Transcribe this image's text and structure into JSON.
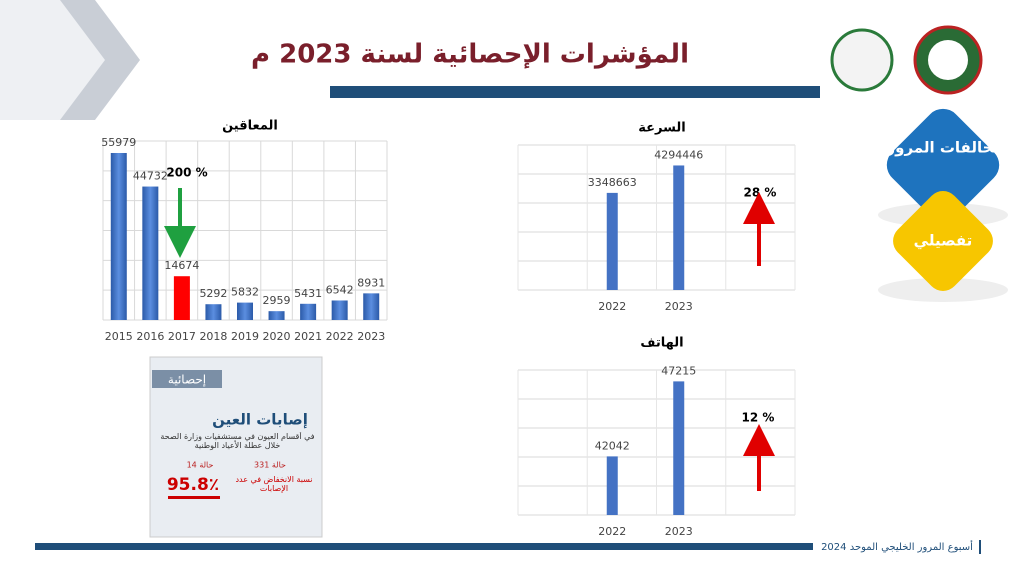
{
  "title": "المؤشرات الإحصائية لسنة 2023 م",
  "footer": "أسبوع المرور الخليجي الموحد 2024",
  "buttons": [
    "المخالفات المرورية",
    "تفصيلي"
  ],
  "infographic": {
    "tag": "إحصائية",
    "heading": "إصابات العين",
    "text": "في أقسام العيون في مستشفيات وزارة الصحة خلال عطلة الأعياد الوطنية",
    "before": "331 حالة",
    "after": "14 حالة",
    "percent": "95.8٪",
    "caption": "نسبة الانخفاض في عدد الإصابات"
  },
  "chart_data": [
    {
      "type": "bar",
      "title": "المعاقين",
      "categories": [
        "2015",
        "2016",
        "2017",
        "2018",
        "2019",
        "2020",
        "2021",
        "2022",
        "2023"
      ],
      "values": [
        55979,
        44732,
        14674,
        5292,
        5832,
        2959,
        5431,
        6542,
        8931
      ],
      "color": "#3f6fc0",
      "colors": [
        "#3f6fc0",
        "#3f6fc0",
        "#ff0000",
        "#3f6fc0",
        "#3f6fc0",
        "#3f6fc0",
        "#3f6fc0",
        "#3f6fc0",
        "#3f6fc0"
      ],
      "ylim": [
        0,
        60000
      ],
      "yticks": [
        0,
        10000,
        20000,
        30000,
        40000,
        50000,
        60000
      ],
      "grid": true,
      "annotation": "200 %"
    },
    {
      "type": "bar",
      "title": "السرعة",
      "categories": [
        "2022",
        "2023"
      ],
      "values": [
        3348663,
        4294446
      ],
      "color": "#4472c4",
      "ylim": [
        0,
        5000000
      ],
      "yticks": [
        0,
        1000000,
        2000000,
        3000000,
        4000000,
        5000000
      ],
      "grid": true,
      "annotation": "28 %"
    },
    {
      "type": "bar",
      "title": "الهاتف",
      "categories": [
        "2022",
        "2023"
      ],
      "values": [
        42042,
        47215
      ],
      "color": "#4472c4",
      "ylim": [
        38000,
        48000
      ],
      "yticks": [
        38000,
        40000,
        42000,
        44000,
        46000,
        48000
      ],
      "grid": true,
      "annotation": "12 %"
    }
  ]
}
